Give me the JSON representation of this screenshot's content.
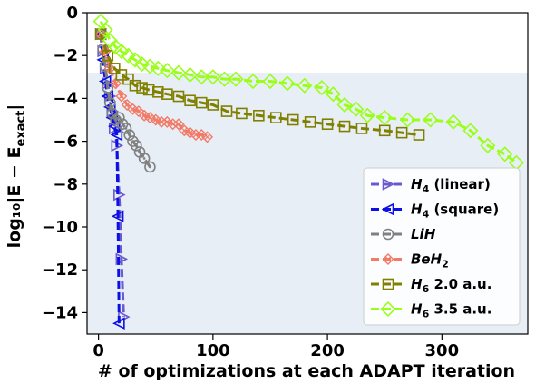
{
  "chart_data": {
    "type": "line",
    "xlabel": "# of optimizations at each ADAPT iteration",
    "ylabel": "log₁₀|E − E",
    "ylabel_sub": "exact",
    "ylabel_close": "|",
    "xlim": [
      -10,
      375
    ],
    "ylim": [
      -15,
      0
    ],
    "xticks": [
      0,
      100,
      200,
      300
    ],
    "yticks": [
      0,
      -2,
      -4,
      -6,
      -8,
      -10,
      -12,
      -14
    ],
    "chemical_accuracy_band": {
      "ymin": -15,
      "ymax": -2.8,
      "color": "#e8eef6"
    },
    "grid": false,
    "legend_position": "lower-right",
    "series": [
      {
        "name": "H4 (linear)",
        "label_main": "H",
        "label_sub": "4",
        "label_rest": " (linear)",
        "color": "#6a5acd",
        "marker": "triangle-right",
        "x": [
          2,
          4,
          6,
          8,
          10,
          12,
          14,
          16,
          18,
          20,
          22
        ],
        "y": [
          -1.0,
          -1.8,
          -2.6,
          -3.3,
          -3.9,
          -4.6,
          -5.4,
          -6.2,
          -8.5,
          -11.5,
          -14.2
        ]
      },
      {
        "name": "H4 (square)",
        "label_main": "H",
        "label_sub": "4",
        "label_rest": " (square)",
        "color": "#0a10e6",
        "marker": "triangle-left",
        "x": [
          2,
          4,
          6,
          8,
          10,
          12,
          14,
          16,
          17,
          18
        ],
        "y": [
          -1.0,
          -2.2,
          -3.2,
          -3.9,
          -4.4,
          -4.9,
          -5.3,
          -5.7,
          -9.5,
          -14.5
        ]
      },
      {
        "name": "LiH",
        "label_main": "LiH",
        "label_sub": "",
        "label_rest": "",
        "color": "#808080",
        "marker": "circle-dot",
        "x": [
          2,
          4,
          6,
          8,
          10,
          12,
          15,
          18,
          21,
          24,
          27,
          30,
          33,
          36,
          40,
          45
        ],
        "y": [
          -1.0,
          -1.7,
          -2.5,
          -3.5,
          -4.2,
          -4.7,
          -5.0,
          -4.9,
          -5.2,
          -5.4,
          -5.7,
          -6.0,
          -6.2,
          -6.5,
          -6.8,
          -7.2
        ]
      },
      {
        "name": "BeH2",
        "label_main": "BeH",
        "label_sub": "2",
        "label_rest": "",
        "color": "#f27a66",
        "marker": "x-diamond",
        "x": [
          2,
          6,
          10,
          15,
          20,
          25,
          30,
          35,
          40,
          45,
          50,
          55,
          60,
          65,
          70,
          75,
          80,
          85,
          90,
          95
        ],
        "y": [
          -1.0,
          -1.8,
          -2.6,
          -3.3,
          -3.9,
          -4.3,
          -4.5,
          -4.6,
          -4.8,
          -4.9,
          -5.0,
          -5.1,
          -5.1,
          -5.2,
          -5.2,
          -5.5,
          -5.6,
          -5.7,
          -5.7,
          -5.8
        ]
      },
      {
        "name": "H6 2.0 a.u.",
        "label_main": "H",
        "label_sub": "6",
        "label_rest": " 2.0 a.u.",
        "color": "#808000",
        "marker": "square",
        "x": [
          2,
          8,
          14,
          20,
          26,
          32,
          38,
          44,
          52,
          60,
          70,
          80,
          90,
          100,
          112,
          125,
          140,
          155,
          170,
          185,
          200,
          215,
          230,
          250,
          265,
          280
        ],
        "y": [
          -1.0,
          -2.0,
          -2.6,
          -2.9,
          -3.1,
          -3.4,
          -3.5,
          -3.6,
          -3.7,
          -3.8,
          -3.9,
          -4.1,
          -4.2,
          -4.3,
          -4.6,
          -4.7,
          -4.8,
          -4.9,
          -5.0,
          -5.1,
          -5.2,
          -5.3,
          -5.4,
          -5.5,
          -5.6,
          -5.7
        ]
      },
      {
        "name": "H6 3.5 a.u.",
        "label_main": "H",
        "label_sub": "6",
        "label_rest": " 3.5 a.u.",
        "color": "#99ff1a",
        "marker": "diamond",
        "x": [
          2,
          6,
          10,
          15,
          20,
          26,
          32,
          38,
          45,
          52,
          60,
          70,
          80,
          90,
          100,
          110,
          120,
          135,
          150,
          165,
          180,
          195,
          205,
          215,
          225,
          235,
          250,
          270,
          290,
          310,
          325,
          340,
          355,
          365
        ],
        "y": [
          -0.4,
          -0.8,
          -1.3,
          -1.6,
          -1.8,
          -2.0,
          -2.2,
          -2.4,
          -2.5,
          -2.6,
          -2.7,
          -2.8,
          -2.9,
          -3.0,
          -3.0,
          -3.1,
          -3.1,
          -3.2,
          -3.2,
          -3.3,
          -3.4,
          -3.5,
          -3.8,
          -4.3,
          -4.5,
          -4.8,
          -4.9,
          -5.0,
          -5.0,
          -5.1,
          -5.5,
          -6.2,
          -6.6,
          -7.0
        ]
      }
    ]
  }
}
